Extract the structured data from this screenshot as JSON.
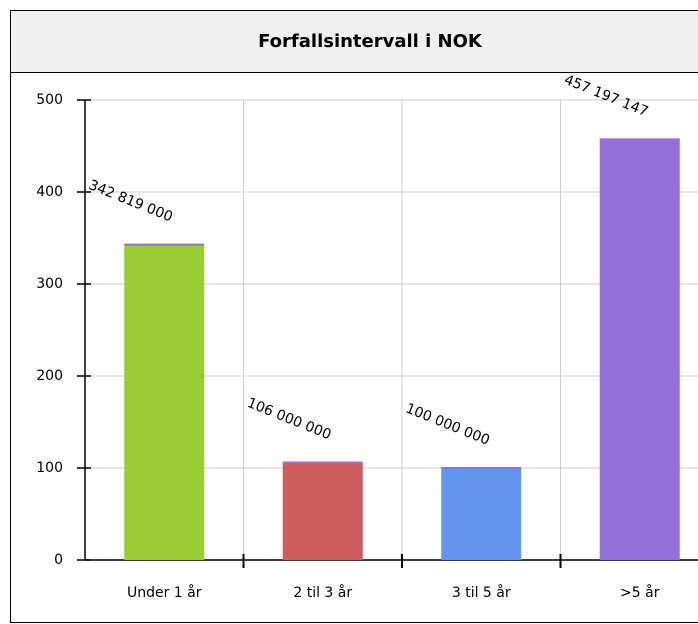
{
  "chart_data": {
    "type": "bar",
    "title": "Forfallsintervall i NOK",
    "categories": [
      "Under 1 år",
      "2 til 3 år",
      "3 til 5 år",
      ">5 år"
    ],
    "values": [
      342.819,
      106,
      100,
      457.197147
    ],
    "value_labels": [
      "342 819 000",
      "106 000 000",
      "100 000 000",
      "457 197 147"
    ],
    "colors": [
      "#9acd32",
      "#cd5c5c",
      "#6495ed",
      "#9370db"
    ],
    "ylim": [
      0,
      500
    ],
    "yticks": [
      0,
      100,
      200,
      300,
      400,
      500
    ],
    "grid": true
  }
}
